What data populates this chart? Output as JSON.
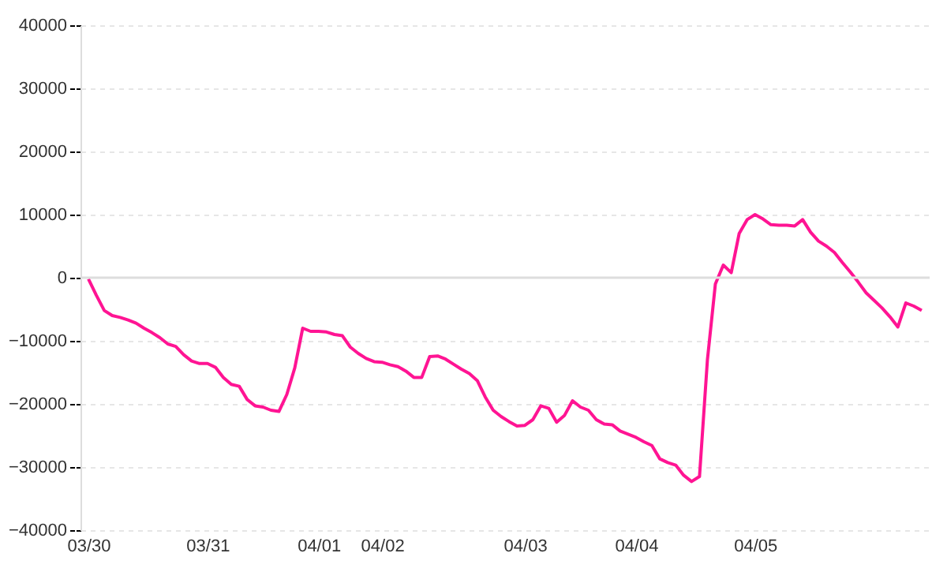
{
  "chart_data": {
    "type": "line",
    "categories": [
      "03/30",
      null,
      null,
      null,
      null,
      null,
      null,
      null,
      null,
      null,
      null,
      null,
      null,
      null,
      null,
      "03/31",
      null,
      null,
      null,
      null,
      null,
      null,
      null,
      null,
      null,
      null,
      null,
      null,
      null,
      "04/01",
      null,
      null,
      null,
      null,
      null,
      null,
      null,
      "04/02",
      null,
      null,
      null,
      null,
      null,
      null,
      null,
      null,
      null,
      null,
      null,
      null,
      null,
      null,
      null,
      null,
      null,
      "04/03",
      null,
      null,
      null,
      null,
      null,
      null,
      null,
      null,
      null,
      null,
      null,
      null,
      null,
      "04/04",
      null,
      null,
      null,
      null,
      null,
      null,
      null,
      null,
      null,
      null,
      null,
      null,
      null,
      null,
      "04/05",
      null,
      null,
      null,
      null,
      null,
      null,
      null,
      null,
      null,
      null,
      null,
      null,
      null,
      null,
      null,
      null,
      null,
      null,
      null,
      null,
      null
    ],
    "series": [
      {
        "color": "#ff1493",
        "values": [
          -200,
          -2800,
          -5200,
          -6000,
          -6300,
          -6700,
          -7200,
          -8000,
          -8700,
          -9500,
          -10500,
          -10900,
          -12200,
          -13200,
          -13600,
          -13600,
          -14200,
          -15800,
          -16900,
          -17200,
          -19300,
          -20300,
          -20500,
          -21000,
          -21200,
          -18500,
          -14300,
          -8000,
          -8500,
          -8500,
          -8600,
          -9000,
          -9200,
          -11000,
          -12000,
          -12800,
          -13300,
          -13400,
          -13800,
          -14100,
          -14800,
          -15800,
          -15800,
          -12500,
          -12400,
          -12900,
          -13700,
          -14500,
          -15200,
          -16300,
          -18900,
          -21000,
          -22000,
          -22800,
          -23500,
          -23400,
          -22500,
          -20300,
          -20700,
          -22900,
          -21800,
          -19500,
          -20500,
          -21000,
          -22500,
          -23200,
          -23300,
          -24300,
          -24800,
          -25300,
          -26000,
          -26600,
          -28700,
          -29300,
          -29700,
          -31300,
          -32300,
          -31500,
          -13000,
          -1000,
          2000,
          800,
          7000,
          9200,
          10000,
          9300,
          8400,
          8300,
          8300,
          8200,
          9200,
          7200,
          5800,
          5000,
          4000,
          2400,
          900,
          -700,
          -2400,
          -3600,
          -4800,
          -6200,
          -7800,
          -4000,
          -4500,
          -5200
        ]
      }
    ],
    "ylim": [
      -40000,
      40000
    ],
    "yticks": [
      -40000,
      -30000,
      -20000,
      -10000,
      0,
      10000,
      20000,
      30000,
      40000
    ],
    "grid": "y",
    "legend": false,
    "marker": "none",
    "line_style": "solid",
    "ref_lines": [
      {
        "axis": "y",
        "value": 0,
        "color": "#dddddd"
      }
    ]
  }
}
